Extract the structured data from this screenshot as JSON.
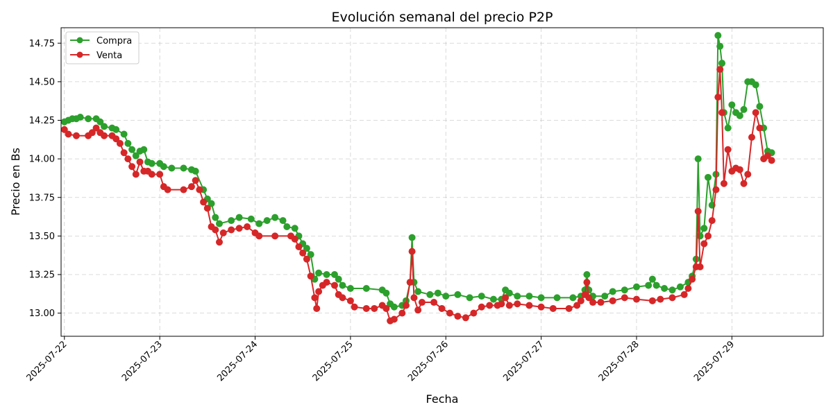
{
  "chart_data": {
    "type": "line",
    "title": "Evolución semanal del precio P2P",
    "xlabel": "Fecha",
    "ylabel": "Precio en Bs",
    "x_range": [
      "2025-07-21T23:10:00",
      "2025-07-29T23:00:00"
    ],
    "ylim": [
      12.85,
      14.85
    ],
    "x_ticks": [
      "2025-07-22",
      "2025-07-23",
      "2025-07-24",
      "2025-07-25",
      "2025-07-26",
      "2025-07-27",
      "2025-07-28",
      "2025-07-29"
    ],
    "y_ticks": [
      "13.00",
      "13.25",
      "13.50",
      "13.75",
      "14.00",
      "14.25",
      "14.50",
      "14.75"
    ],
    "grid": true,
    "legend_position": "top-left",
    "series": [
      {
        "name": "Compra",
        "color": "#2ca02c",
        "points": [
          [
            "2025-07-22T00:00",
            14.24
          ],
          [
            "2025-07-22T01:00",
            14.25
          ],
          [
            "2025-07-22T02:00",
            14.26
          ],
          [
            "2025-07-22T03:00",
            14.26
          ],
          [
            "2025-07-22T04:00",
            14.27
          ],
          [
            "2025-07-22T06:00",
            14.26
          ],
          [
            "2025-07-22T08:00",
            14.26
          ],
          [
            "2025-07-22T09:00",
            14.24
          ],
          [
            "2025-07-22T10:00",
            14.21
          ],
          [
            "2025-07-22T12:00",
            14.2
          ],
          [
            "2025-07-22T13:00",
            14.19
          ],
          [
            "2025-07-22T15:00",
            14.16
          ],
          [
            "2025-07-22T16:00",
            14.1
          ],
          [
            "2025-07-22T17:00",
            14.06
          ],
          [
            "2025-07-22T18:00",
            14.02
          ],
          [
            "2025-07-22T19:00",
            14.05
          ],
          [
            "2025-07-22T20:00",
            14.06
          ],
          [
            "2025-07-22T21:00",
            13.98
          ],
          [
            "2025-07-22T22:00",
            13.97
          ],
          [
            "2025-07-23T00:00",
            13.97
          ],
          [
            "2025-07-23T01:00",
            13.95
          ],
          [
            "2025-07-23T03:00",
            13.94
          ],
          [
            "2025-07-23T06:00",
            13.94
          ],
          [
            "2025-07-23T08:00",
            13.93
          ],
          [
            "2025-07-23T09:00",
            13.92
          ],
          [
            "2025-07-23T11:00",
            13.8
          ],
          [
            "2025-07-23T12:00",
            13.74
          ],
          [
            "2025-07-23T13:00",
            13.71
          ],
          [
            "2025-07-23T14:00",
            13.62
          ],
          [
            "2025-07-23T15:00",
            13.58
          ],
          [
            "2025-07-23T18:00",
            13.6
          ],
          [
            "2025-07-23T20:00",
            13.62
          ],
          [
            "2025-07-23T23:00",
            13.61
          ],
          [
            "2025-07-24T01:00",
            13.58
          ],
          [
            "2025-07-24T03:00",
            13.6
          ],
          [
            "2025-07-24T05:00",
            13.62
          ],
          [
            "2025-07-24T07:00",
            13.6
          ],
          [
            "2025-07-24T08:00",
            13.56
          ],
          [
            "2025-07-24T10:00",
            13.55
          ],
          [
            "2025-07-24T11:00",
            13.5
          ],
          [
            "2025-07-24T12:00",
            13.45
          ],
          [
            "2025-07-24T13:00",
            13.42
          ],
          [
            "2025-07-24T14:00",
            13.38
          ],
          [
            "2025-07-24T15:00",
            13.22
          ],
          [
            "2025-07-24T16:00",
            13.26
          ],
          [
            "2025-07-24T18:00",
            13.25
          ],
          [
            "2025-07-24T20:00",
            13.25
          ],
          [
            "2025-07-24T21:00",
            13.22
          ],
          [
            "2025-07-24T22:00",
            13.18
          ],
          [
            "2025-07-25T00:00",
            13.16
          ],
          [
            "2025-07-25T04:00",
            13.16
          ],
          [
            "2025-07-25T08:00",
            13.15
          ],
          [
            "2025-07-25T09:00",
            13.13
          ],
          [
            "2025-07-25T10:00",
            13.06
          ],
          [
            "2025-07-25T11:00",
            13.04
          ],
          [
            "2025-07-25T13:00",
            13.05
          ],
          [
            "2025-07-25T14:00",
            13.08
          ],
          [
            "2025-07-25T15:00",
            13.2
          ],
          [
            "2025-07-25T15:30",
            13.49
          ],
          [
            "2025-07-25T16:00",
            13.2
          ],
          [
            "2025-07-25T17:00",
            13.14
          ],
          [
            "2025-07-25T20:00",
            13.12
          ],
          [
            "2025-07-25T22:00",
            13.13
          ],
          [
            "2025-07-26T00:00",
            13.11
          ],
          [
            "2025-07-26T03:00",
            13.12
          ],
          [
            "2025-07-26T06:00",
            13.1
          ],
          [
            "2025-07-26T09:00",
            13.11
          ],
          [
            "2025-07-26T12:00",
            13.09
          ],
          [
            "2025-07-26T14:00",
            13.09
          ],
          [
            "2025-07-26T15:00",
            13.15
          ],
          [
            "2025-07-26T16:00",
            13.13
          ],
          [
            "2025-07-26T18:00",
            13.11
          ],
          [
            "2025-07-26T21:00",
            13.11
          ],
          [
            "2025-07-27T00:00",
            13.1
          ],
          [
            "2025-07-27T04:00",
            13.1
          ],
          [
            "2025-07-27T08:00",
            13.1
          ],
          [
            "2025-07-27T10:00",
            13.11
          ],
          [
            "2025-07-27T11:00",
            13.15
          ],
          [
            "2025-07-27T11:30",
            13.25
          ],
          [
            "2025-07-27T12:00",
            13.15
          ],
          [
            "2025-07-27T13:00",
            13.11
          ],
          [
            "2025-07-27T16:00",
            13.11
          ],
          [
            "2025-07-27T18:00",
            13.14
          ],
          [
            "2025-07-27T21:00",
            13.15
          ],
          [
            "2025-07-28T00:00",
            13.17
          ],
          [
            "2025-07-28T03:00",
            13.18
          ],
          [
            "2025-07-28T04:00",
            13.22
          ],
          [
            "2025-07-28T05:00",
            13.18
          ],
          [
            "2025-07-28T07:00",
            13.16
          ],
          [
            "2025-07-28T09:00",
            13.15
          ],
          [
            "2025-07-28T11:00",
            13.17
          ],
          [
            "2025-07-28T13:00",
            13.2
          ],
          [
            "2025-07-28T14:00",
            13.24
          ],
          [
            "2025-07-28T15:00",
            13.35
          ],
          [
            "2025-07-28T15:30",
            14.0
          ],
          [
            "2025-07-28T16:00",
            13.5
          ],
          [
            "2025-07-28T17:00",
            13.55
          ],
          [
            "2025-07-28T18:00",
            13.88
          ],
          [
            "2025-07-28T19:00",
            13.7
          ],
          [
            "2025-07-28T20:00",
            13.9
          ],
          [
            "2025-07-28T20:30",
            14.8
          ],
          [
            "2025-07-28T21:00",
            14.73
          ],
          [
            "2025-07-28T21:30",
            14.62
          ],
          [
            "2025-07-28T22:00",
            14.3
          ],
          [
            "2025-07-28T23:00",
            14.2
          ],
          [
            "2025-07-29T00:00",
            14.35
          ],
          [
            "2025-07-29T01:00",
            14.3
          ],
          [
            "2025-07-29T02:00",
            14.28
          ],
          [
            "2025-07-29T03:00",
            14.32
          ],
          [
            "2025-07-29T04:00",
            14.5
          ],
          [
            "2025-07-29T05:00",
            14.5
          ],
          [
            "2025-07-29T06:00",
            14.48
          ],
          [
            "2025-07-29T07:00",
            14.34
          ],
          [
            "2025-07-29T08:00",
            14.2
          ],
          [
            "2025-07-29T09:00",
            14.05
          ],
          [
            "2025-07-29T10:00",
            14.04
          ]
        ]
      },
      {
        "name": "Venta",
        "color": "#d62728",
        "points": [
          [
            "2025-07-22T00:00",
            14.19
          ],
          [
            "2025-07-22T01:00",
            14.16
          ],
          [
            "2025-07-22T03:00",
            14.15
          ],
          [
            "2025-07-22T06:00",
            14.15
          ],
          [
            "2025-07-22T07:00",
            14.17
          ],
          [
            "2025-07-22T08:00",
            14.2
          ],
          [
            "2025-07-22T09:00",
            14.17
          ],
          [
            "2025-07-22T10:00",
            14.15
          ],
          [
            "2025-07-22T12:00",
            14.15
          ],
          [
            "2025-07-22T13:00",
            14.13
          ],
          [
            "2025-07-22T14:00",
            14.1
          ],
          [
            "2025-07-22T15:00",
            14.04
          ],
          [
            "2025-07-22T16:00",
            14.0
          ],
          [
            "2025-07-22T17:00",
            13.95
          ],
          [
            "2025-07-22T18:00",
            13.9
          ],
          [
            "2025-07-22T19:00",
            13.98
          ],
          [
            "2025-07-22T20:00",
            13.92
          ],
          [
            "2025-07-22T21:00",
            13.92
          ],
          [
            "2025-07-22T22:00",
            13.9
          ],
          [
            "2025-07-23T00:00",
            13.9
          ],
          [
            "2025-07-23T01:00",
            13.82
          ],
          [
            "2025-07-23T02:00",
            13.8
          ],
          [
            "2025-07-23T06:00",
            13.8
          ],
          [
            "2025-07-23T08:00",
            13.82
          ],
          [
            "2025-07-23T09:00",
            13.86
          ],
          [
            "2025-07-23T10:00",
            13.8
          ],
          [
            "2025-07-23T11:00",
            13.72
          ],
          [
            "2025-07-23T12:00",
            13.68
          ],
          [
            "2025-07-23T13:00",
            13.56
          ],
          [
            "2025-07-23T14:00",
            13.54
          ],
          [
            "2025-07-23T15:00",
            13.46
          ],
          [
            "2025-07-23T16:00",
            13.52
          ],
          [
            "2025-07-23T18:00",
            13.54
          ],
          [
            "2025-07-23T20:00",
            13.55
          ],
          [
            "2025-07-23T22:00",
            13.56
          ],
          [
            "2025-07-24T00:00",
            13.52
          ],
          [
            "2025-07-24T01:00",
            13.5
          ],
          [
            "2025-07-24T05:00",
            13.5
          ],
          [
            "2025-07-24T09:00",
            13.5
          ],
          [
            "2025-07-24T10:00",
            13.48
          ],
          [
            "2025-07-24T11:00",
            13.43
          ],
          [
            "2025-07-24T12:00",
            13.39
          ],
          [
            "2025-07-24T13:00",
            13.35
          ],
          [
            "2025-07-24T14:00",
            13.24
          ],
          [
            "2025-07-24T15:00",
            13.1
          ],
          [
            "2025-07-24T15:30",
            13.03
          ],
          [
            "2025-07-24T16:00",
            13.14
          ],
          [
            "2025-07-24T17:00",
            13.18
          ],
          [
            "2025-07-24T18:00",
            13.2
          ],
          [
            "2025-07-24T20:00",
            13.18
          ],
          [
            "2025-07-24T21:00",
            13.12
          ],
          [
            "2025-07-24T22:00",
            13.1
          ],
          [
            "2025-07-25T00:00",
            13.08
          ],
          [
            "2025-07-25T01:00",
            13.04
          ],
          [
            "2025-07-25T04:00",
            13.03
          ],
          [
            "2025-07-25T06:00",
            13.03
          ],
          [
            "2025-07-25T08:00",
            13.05
          ],
          [
            "2025-07-25T09:00",
            13.03
          ],
          [
            "2025-07-25T10:00",
            12.95
          ],
          [
            "2025-07-25T11:00",
            12.96
          ],
          [
            "2025-07-25T13:00",
            13.0
          ],
          [
            "2025-07-25T14:00",
            13.05
          ],
          [
            "2025-07-25T15:00",
            13.2
          ],
          [
            "2025-07-25T15:30",
            13.4
          ],
          [
            "2025-07-25T16:00",
            13.1
          ],
          [
            "2025-07-25T17:00",
            13.02
          ],
          [
            "2025-07-25T18:00",
            13.07
          ],
          [
            "2025-07-25T21:00",
            13.07
          ],
          [
            "2025-07-25T23:00",
            13.03
          ],
          [
            "2025-07-26T01:00",
            13.0
          ],
          [
            "2025-07-26T03:00",
            12.98
          ],
          [
            "2025-07-26T05:00",
            12.97
          ],
          [
            "2025-07-26T07:00",
            13.0
          ],
          [
            "2025-07-26T09:00",
            13.04
          ],
          [
            "2025-07-26T11:00",
            13.05
          ],
          [
            "2025-07-26T13:00",
            13.05
          ],
          [
            "2025-07-26T14:00",
            13.06
          ],
          [
            "2025-07-26T15:00",
            13.1
          ],
          [
            "2025-07-26T16:00",
            13.05
          ],
          [
            "2025-07-26T18:00",
            13.06
          ],
          [
            "2025-07-26T21:00",
            13.05
          ],
          [
            "2025-07-27T00:00",
            13.04
          ],
          [
            "2025-07-27T03:00",
            13.03
          ],
          [
            "2025-07-27T07:00",
            13.03
          ],
          [
            "2025-07-27T09:00",
            13.05
          ],
          [
            "2025-07-27T10:00",
            13.08
          ],
          [
            "2025-07-27T11:00",
            13.12
          ],
          [
            "2025-07-27T11:30",
            13.2
          ],
          [
            "2025-07-27T12:00",
            13.1
          ],
          [
            "2025-07-27T13:00",
            13.07
          ],
          [
            "2025-07-27T15:00",
            13.07
          ],
          [
            "2025-07-27T18:00",
            13.08
          ],
          [
            "2025-07-27T21:00",
            13.1
          ],
          [
            "2025-07-28T00:00",
            13.09
          ],
          [
            "2025-07-28T04:00",
            13.08
          ],
          [
            "2025-07-28T06:00",
            13.09
          ],
          [
            "2025-07-28T09:00",
            13.1
          ],
          [
            "2025-07-28T12:00",
            13.12
          ],
          [
            "2025-07-28T13:00",
            13.16
          ],
          [
            "2025-07-28T14:00",
            13.22
          ],
          [
            "2025-07-28T15:00",
            13.3
          ],
          [
            "2025-07-28T15:30",
            13.66
          ],
          [
            "2025-07-28T16:00",
            13.3
          ],
          [
            "2025-07-28T17:00",
            13.45
          ],
          [
            "2025-07-28T18:00",
            13.5
          ],
          [
            "2025-07-28T19:00",
            13.6
          ],
          [
            "2025-07-28T20:00",
            13.8
          ],
          [
            "2025-07-28T20:30",
            14.4
          ],
          [
            "2025-07-28T21:00",
            14.58
          ],
          [
            "2025-07-28T21:30",
            14.3
          ],
          [
            "2025-07-28T22:00",
            13.84
          ],
          [
            "2025-07-28T23:00",
            14.06
          ],
          [
            "2025-07-29T00:00",
            13.92
          ],
          [
            "2025-07-29T01:00",
            13.94
          ],
          [
            "2025-07-29T02:00",
            13.93
          ],
          [
            "2025-07-29T03:00",
            13.84
          ],
          [
            "2025-07-29T04:00",
            13.9
          ],
          [
            "2025-07-29T05:00",
            14.14
          ],
          [
            "2025-07-29T06:00",
            14.3
          ],
          [
            "2025-07-29T07:00",
            14.2
          ],
          [
            "2025-07-29T08:00",
            14.0
          ],
          [
            "2025-07-29T09:00",
            14.02
          ],
          [
            "2025-07-29T10:00",
            13.99
          ]
        ]
      }
    ]
  }
}
